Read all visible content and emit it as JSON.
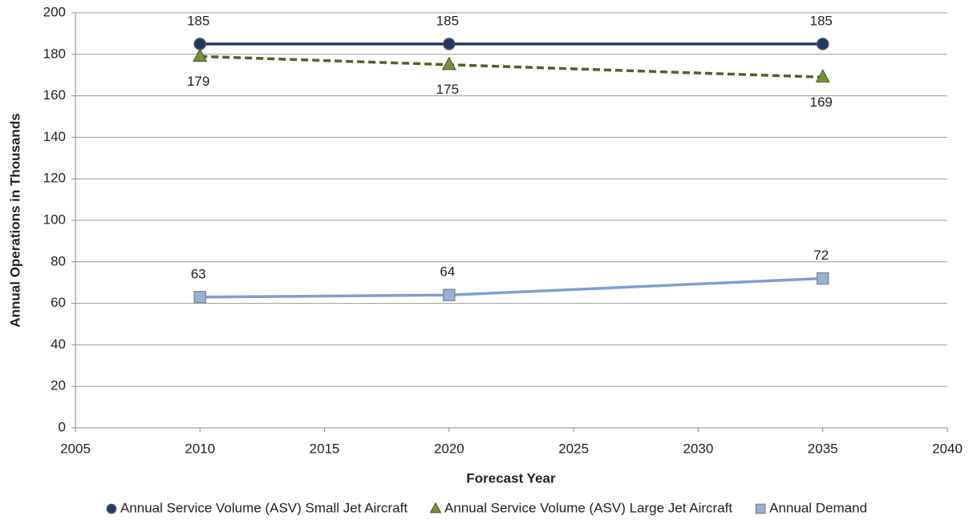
{
  "chart_data": {
    "type": "line",
    "x_label": "Forecast Year",
    "y_label": "Annual Operations in Thousands",
    "x": [
      2010,
      2020,
      2035
    ],
    "series": [
      {
        "name": "Annual Service Volume (ASV) Small Jet Aircraft",
        "color": "#1f3864",
        "marker": "circle",
        "line_style": "solid",
        "values": [
          185,
          185,
          185
        ]
      },
      {
        "name": "Annual Service Volume (ASV) Large Jet Aircraft",
        "color": "#4f6228",
        "marker": "triangle",
        "line_style": "dashed",
        "values": [
          179,
          175,
          169
        ]
      },
      {
        "name": "Annual Demand",
        "color": "#7f9fd0",
        "marker": "square",
        "line_style": "solid",
        "values": [
          63,
          64,
          72
        ]
      }
    ],
    "xlim": [
      2005,
      2040
    ],
    "xticks": [
      2005,
      2010,
      2015,
      2020,
      2025,
      2030,
      2035,
      2040
    ],
    "ylim": [
      0,
      200
    ],
    "yticks": [
      0,
      20,
      40,
      60,
      80,
      100,
      120,
      140,
      160,
      180,
      200
    ],
    "grid": true,
    "legend": "bottom"
  }
}
